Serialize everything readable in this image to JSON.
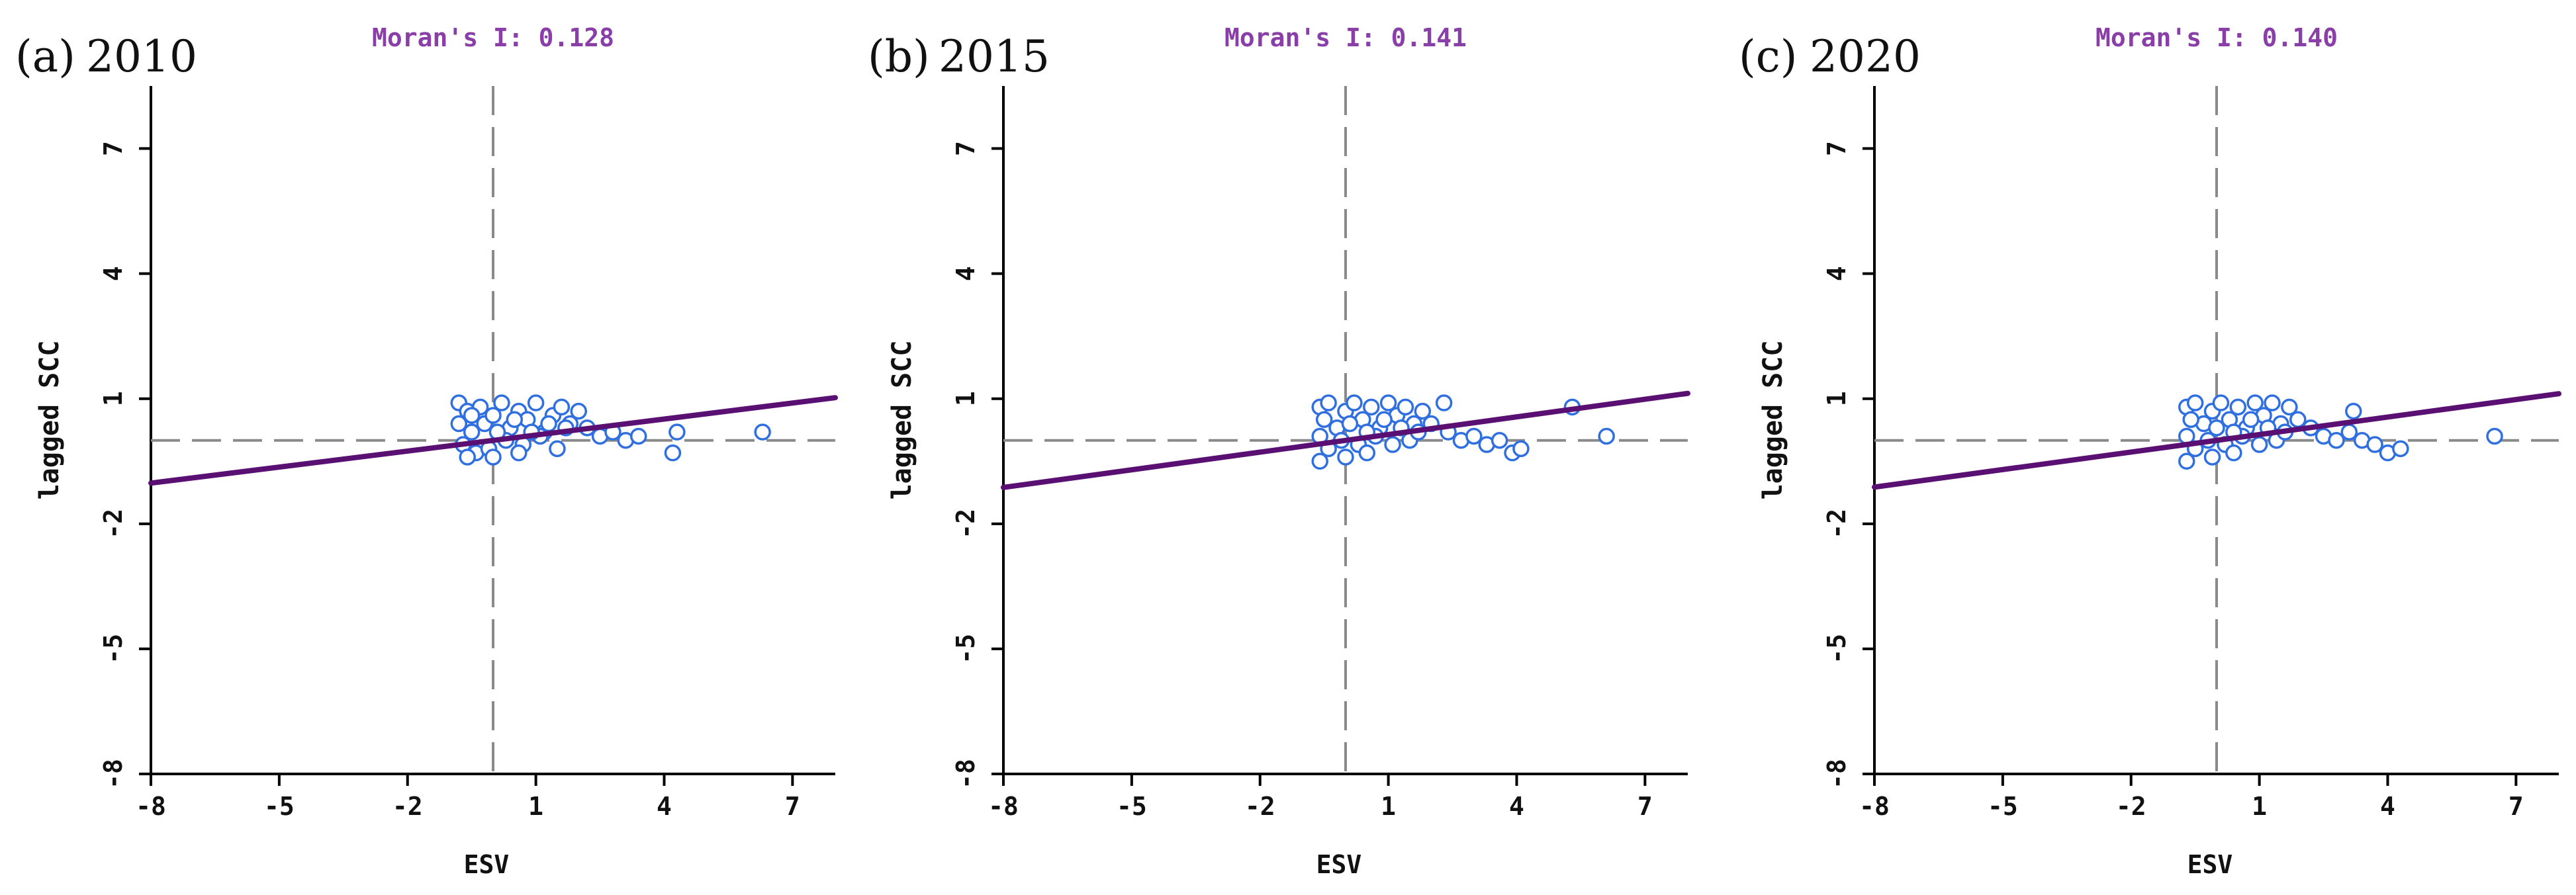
{
  "chart_data": [
    {
      "type": "scatter",
      "panel_label": "(a)",
      "year": "2010",
      "title": "Moran's I: 0.128",
      "xlabel": "ESV",
      "ylabel": "lagged SCC",
      "xlim": [
        -8,
        8
      ],
      "ylim": [
        -8,
        8.5
      ],
      "xticks": [
        -8,
        -5,
        -2,
        1,
        4,
        7
      ],
      "yticks": [
        -8,
        -5,
        -2,
        1,
        4,
        7
      ],
      "reference_lines": {
        "x": 0,
        "y": 0
      },
      "regression_line": {
        "slope": 0.128,
        "intercept": 0.0
      },
      "grid": false,
      "colors": {
        "points": "#2f6fe0",
        "regression": "#5a0f72",
        "reference": "#8a8a8a",
        "title": "#8a3fa8"
      },
      "points": [
        [
          -0.8,
          0.9
        ],
        [
          -0.6,
          0.7
        ],
        [
          -0.5,
          0.2
        ],
        [
          -0.3,
          0.8
        ],
        [
          -0.2,
          0.4
        ],
        [
          0.0,
          0.6
        ],
        [
          0.2,
          0.9
        ],
        [
          0.4,
          0.3
        ],
        [
          0.6,
          0.7
        ],
        [
          0.8,
          0.5
        ],
        [
          1.0,
          0.9
        ],
        [
          1.2,
          0.2
        ],
        [
          1.4,
          0.6
        ],
        [
          1.6,
          0.8
        ],
        [
          1.8,
          0.4
        ],
        [
          2.0,
          0.7
        ],
        [
          -0.7,
          -0.1
        ],
        [
          -0.4,
          -0.3
        ],
        [
          -0.1,
          -0.2
        ],
        [
          0.3,
          0.0
        ],
        [
          0.7,
          -0.1
        ],
        [
          1.1,
          0.1
        ],
        [
          1.5,
          -0.2
        ],
        [
          -0.8,
          0.4
        ],
        [
          -0.5,
          0.6
        ],
        [
          0.1,
          0.2
        ],
        [
          0.5,
          0.5
        ],
        [
          0.9,
          0.2
        ],
        [
          1.3,
          0.4
        ],
        [
          1.7,
          0.3
        ],
        [
          -0.6,
          -0.4
        ],
        [
          0.0,
          -0.4
        ],
        [
          0.6,
          -0.3
        ],
        [
          2.2,
          0.3
        ],
        [
          2.5,
          0.1
        ],
        [
          2.8,
          0.2
        ],
        [
          3.1,
          0.0
        ],
        [
          3.4,
          0.1
        ],
        [
          4.2,
          -0.3
        ],
        [
          4.3,
          0.2
        ],
        [
          6.3,
          0.2
        ]
      ]
    },
    {
      "type": "scatter",
      "panel_label": "(b)",
      "year": "2015",
      "title": "Moran's I: 0.141",
      "xlabel": "ESV",
      "ylabel": "lagged SCC",
      "xlim": [
        -8,
        8
      ],
      "ylim": [
        -8,
        8.5
      ],
      "xticks": [
        -8,
        -5,
        -2,
        1,
        4,
        7
      ],
      "yticks": [
        -8,
        -5,
        -2,
        1,
        4,
        7
      ],
      "reference_lines": {
        "x": 0,
        "y": 0
      },
      "regression_line": {
        "slope": 0.141,
        "intercept": 0.0
      },
      "grid": false,
      "colors": {
        "points": "#2f6fe0",
        "regression": "#5a0f72",
        "reference": "#8a8a8a",
        "title": "#8a3fa8"
      },
      "points": [
        [
          -0.6,
          0.8
        ],
        [
          -0.4,
          0.9
        ],
        [
          -0.2,
          0.3
        ],
        [
          0.0,
          0.7
        ],
        [
          0.2,
          0.9
        ],
        [
          0.4,
          0.5
        ],
        [
          0.6,
          0.8
        ],
        [
          0.8,
          0.3
        ],
        [
          1.0,
          0.9
        ],
        [
          1.2,
          0.6
        ],
        [
          1.4,
          0.8
        ],
        [
          1.6,
          0.4
        ],
        [
          1.8,
          0.7
        ],
        [
          -0.6,
          0.1
        ],
        [
          -0.4,
          -0.2
        ],
        [
          -0.1,
          0.0
        ],
        [
          0.3,
          -0.1
        ],
        [
          0.7,
          0.1
        ],
        [
          1.1,
          -0.1
        ],
        [
          1.5,
          0.0
        ],
        [
          -0.6,
          -0.5
        ],
        [
          0.0,
          -0.4
        ],
        [
          0.5,
          -0.3
        ],
        [
          -0.5,
          0.5
        ],
        [
          0.1,
          0.4
        ],
        [
          0.5,
          0.2
        ],
        [
          0.9,
          0.5
        ],
        [
          1.3,
          0.3
        ],
        [
          1.7,
          0.2
        ],
        [
          2.0,
          0.4
        ],
        [
          2.4,
          0.2
        ],
        [
          2.7,
          0.0
        ],
        [
          3.0,
          0.1
        ],
        [
          3.3,
          -0.1
        ],
        [
          3.6,
          0.0
        ],
        [
          3.9,
          -0.3
        ],
        [
          4.1,
          -0.2
        ],
        [
          2.3,
          0.9
        ],
        [
          5.3,
          0.8
        ],
        [
          6.1,
          0.1
        ]
      ]
    },
    {
      "type": "scatter",
      "panel_label": "(c)",
      "year": "2020",
      "title": "Moran's I: 0.140",
      "xlabel": "ESV",
      "ylabel": "lagged SCC",
      "xlim": [
        -8,
        8
      ],
      "ylim": [
        -8,
        8.5
      ],
      "xticks": [
        -8,
        -5,
        -2,
        1,
        4,
        7
      ],
      "yticks": [
        -8,
        -5,
        -2,
        1,
        4,
        7
      ],
      "reference_lines": {
        "x": 0,
        "y": 0
      },
      "regression_line": {
        "slope": 0.14,
        "intercept": 0.0
      },
      "grid": false,
      "colors": {
        "points": "#2f6fe0",
        "regression": "#5a0f72",
        "reference": "#8a8a8a",
        "title": "#8a3fa8"
      },
      "points": [
        [
          -0.7,
          0.8
        ],
        [
          -0.5,
          0.9
        ],
        [
          -0.3,
          0.4
        ],
        [
          -0.1,
          0.7
        ],
        [
          0.1,
          0.9
        ],
        [
          0.3,
          0.5
        ],
        [
          0.5,
          0.8
        ],
        [
          0.7,
          0.3
        ],
        [
          0.9,
          0.9
        ],
        [
          1.1,
          0.6
        ],
        [
          1.3,
          0.9
        ],
        [
          1.5,
          0.4
        ],
        [
          1.7,
          0.8
        ],
        [
          -0.7,
          0.1
        ],
        [
          -0.5,
          -0.2
        ],
        [
          -0.2,
          0.0
        ],
        [
          0.2,
          -0.1
        ],
        [
          0.6,
          0.1
        ],
        [
          1.0,
          -0.1
        ],
        [
          1.4,
          0.0
        ],
        [
          -0.7,
          -0.5
        ],
        [
          -0.1,
          -0.4
        ],
        [
          0.4,
          -0.3
        ],
        [
          -0.6,
          0.5
        ],
        [
          0.0,
          0.3
        ],
        [
          0.4,
          0.2
        ],
        [
          0.8,
          0.5
        ],
        [
          1.2,
          0.3
        ],
        [
          1.6,
          0.2
        ],
        [
          1.9,
          0.5
        ],
        [
          2.2,
          0.3
        ],
        [
          2.5,
          0.1
        ],
        [
          2.8,
          0.0
        ],
        [
          3.1,
          0.2
        ],
        [
          3.4,
          0.0
        ],
        [
          3.7,
          -0.1
        ],
        [
          4.0,
          -0.3
        ],
        [
          4.3,
          -0.2
        ],
        [
          3.2,
          0.7
        ],
        [
          6.5,
          0.1
        ]
      ]
    }
  ]
}
